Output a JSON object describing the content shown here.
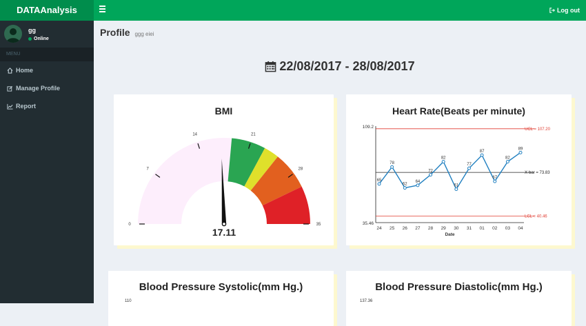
{
  "app": {
    "logo": "DATAAnalysis",
    "logout": "Log out"
  },
  "user": {
    "name": "gg",
    "status": "Online"
  },
  "menu": {
    "header": "MENU",
    "items": [
      {
        "label": "Home",
        "icon": "home-icon"
      },
      {
        "label": "Manage Profile",
        "icon": "edit-icon"
      },
      {
        "label": "Report",
        "icon": "line-chart-icon"
      }
    ]
  },
  "page": {
    "title": "Profile",
    "subtitle": "ggg eiei",
    "date_range": "22/08/2017 - 28/08/2017"
  },
  "cards": {
    "bmi": {
      "title": "BMI"
    },
    "heart_rate": {
      "title": "Heart Rate(Beats per minute)"
    },
    "bp_systolic": {
      "title": "Blood Pressure Systolic(mm Hg.)",
      "partial_tick": "110"
    },
    "bp_diastolic": {
      "title": "Blood Pressure Diastolic(mm Hg.)",
      "partial_tick": "137.36"
    }
  },
  "chart_data": [
    {
      "type": "gauge",
      "title": "BMI",
      "value": 17.11,
      "min": 0,
      "max": 35,
      "ticks": [
        0,
        7,
        14,
        21,
        28,
        35
      ],
      "bands": [
        {
          "from": 0,
          "to": 18.5,
          "color": "#fdeefc"
        },
        {
          "from": 18.5,
          "to": 23,
          "color": "#2aa552"
        },
        {
          "from": 23,
          "to": 25,
          "color": "#dfe02b"
        },
        {
          "from": 25,
          "to": 30,
          "color": "#e2601f"
        },
        {
          "from": 30,
          "to": 35,
          "color": "#df2127"
        }
      ]
    },
    {
      "type": "line",
      "title": "Heart Rate(Beats per minute)",
      "xlabel": "Date",
      "categories": [
        "24",
        "25",
        "26",
        "27",
        "28",
        "29",
        "30",
        "31",
        "01",
        "02",
        "03",
        "04"
      ],
      "values": [
        65,
        78,
        62,
        64,
        72,
        82,
        61,
        77,
        87,
        67,
        82,
        89
      ],
      "ylim": [
        35.46,
        109.2
      ],
      "reference_lines": [
        {
          "label": "UCL = 107.20",
          "value": 107.2,
          "color": "#e03c31"
        },
        {
          "label": "X-bar = 73.83",
          "value": 73.83,
          "color": "#222222"
        },
        {
          "label": "LCL = 40.46",
          "value": 40.46,
          "color": "#e03c31"
        }
      ],
      "line_color": "#1f7fc0"
    }
  ]
}
